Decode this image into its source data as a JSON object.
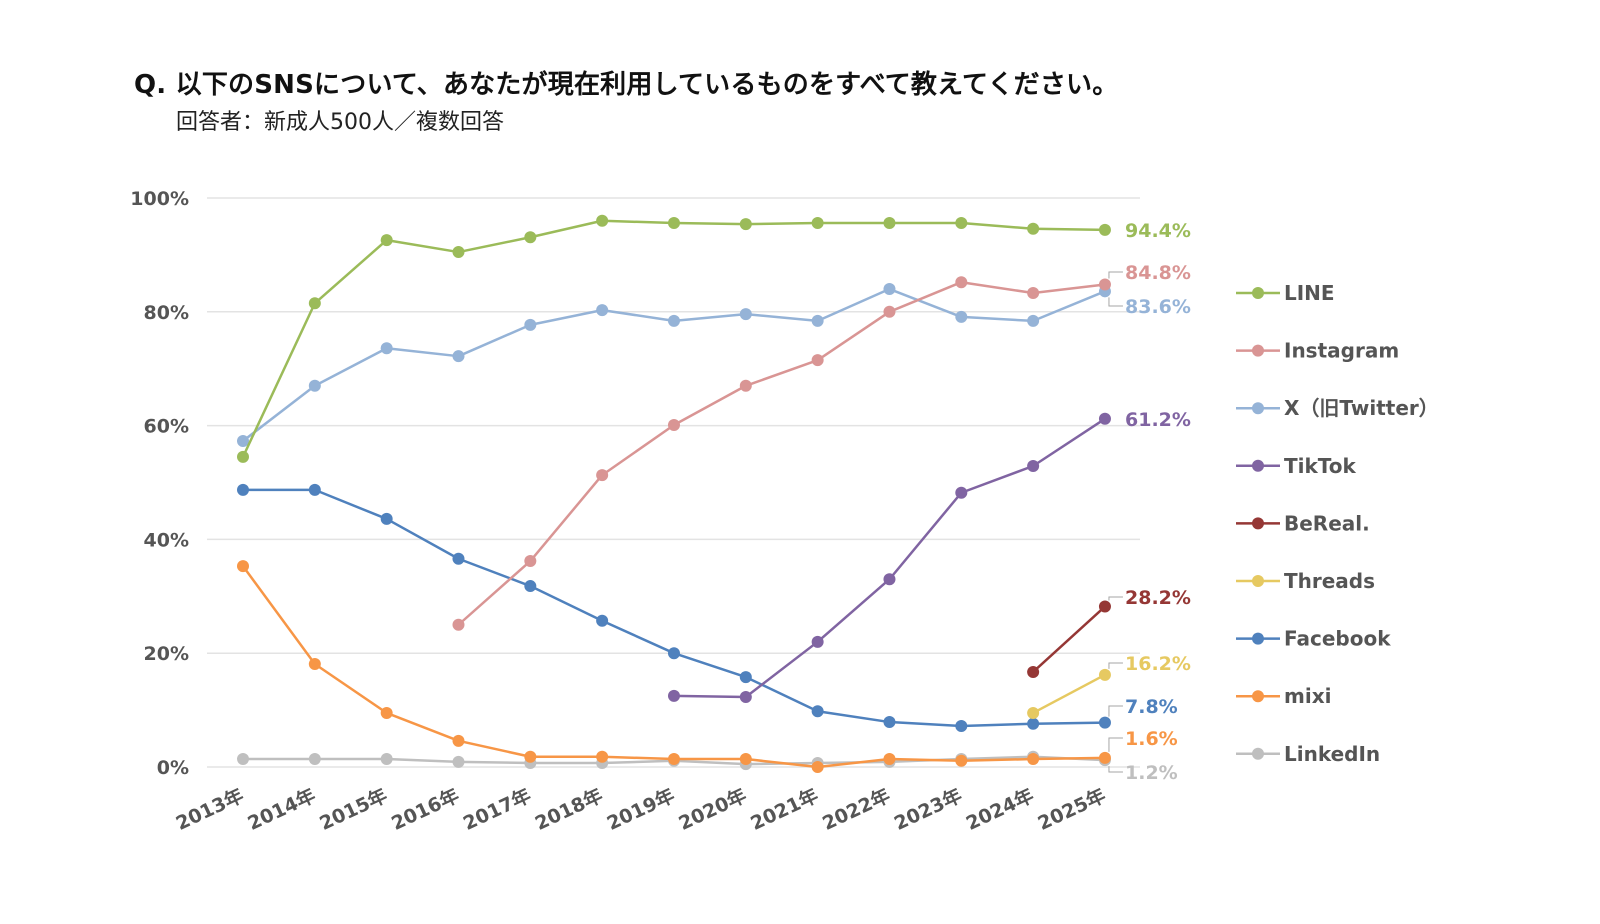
{
  "chart_data": {
    "type": "line",
    "title": "Q. 以下のSNSについて、あなたが現在利用しているものをすべて教えてください。",
    "subtitle": "回答者：新成人500人／複数回答",
    "xlabel": "",
    "ylabel": "",
    "ylim": [
      0,
      100
    ],
    "yticks": [
      0,
      20,
      40,
      60,
      80,
      100
    ],
    "ytick_labels": [
      "0%",
      "20%",
      "40%",
      "60%",
      "80%",
      "100%"
    ],
    "grid": true,
    "legend_position": "right",
    "categories": [
      "2013年",
      "2014年",
      "2015年",
      "2016年",
      "2017年",
      "2018年",
      "2019年",
      "2020年",
      "2021年",
      "2022年",
      "2023年",
      "2024年",
      "2025年"
    ],
    "series": [
      {
        "name": "LINE",
        "color": "#9BBB59",
        "end_label": "94.4%",
        "values": [
          54.5,
          81.5,
          92.6,
          90.5,
          93.1,
          96.0,
          95.6,
          95.4,
          95.6,
          95.6,
          95.6,
          94.6,
          94.4
        ]
      },
      {
        "name": "Instagram",
        "color": "#D99594",
        "end_label": "84.8%",
        "values": [
          null,
          null,
          null,
          25.0,
          36.2,
          51.3,
          60.1,
          67.0,
          71.5,
          80.0,
          85.2,
          83.3,
          84.8
        ]
      },
      {
        "name": "X（旧Twitter）",
        "color": "#95B3D7",
        "end_label": "83.6%",
        "values": [
          57.3,
          67.0,
          73.6,
          72.2,
          77.7,
          80.3,
          78.4,
          79.6,
          78.4,
          84.0,
          79.1,
          78.4,
          83.6
        ]
      },
      {
        "name": "TikTok",
        "color": "#8064A2",
        "end_label": "61.2%",
        "values": [
          null,
          null,
          null,
          null,
          null,
          null,
          12.5,
          12.3,
          22.0,
          33.0,
          48.2,
          52.9,
          61.2
        ]
      },
      {
        "name": "BeReal.",
        "color": "#953735",
        "end_label": "28.2%",
        "values": [
          null,
          null,
          null,
          null,
          null,
          null,
          null,
          null,
          null,
          null,
          null,
          16.7,
          28.2
        ]
      },
      {
        "name": "Threads",
        "color": "#E6C961",
        "end_label": "16.2%",
        "values": [
          null,
          null,
          null,
          null,
          null,
          null,
          null,
          null,
          null,
          null,
          null,
          9.5,
          16.2
        ]
      },
      {
        "name": "Facebook",
        "color": "#4F81BD",
        "end_label": "7.8%",
        "values": [
          48.7,
          48.7,
          43.6,
          36.6,
          31.8,
          25.7,
          20.0,
          15.8,
          9.8,
          7.9,
          7.2,
          7.6,
          7.8
        ]
      },
      {
        "name": "mixi",
        "color": "#F79646",
        "end_label": "1.6%",
        "values": [
          35.3,
          18.1,
          9.5,
          4.6,
          1.8,
          1.8,
          1.4,
          1.4,
          0.0,
          1.4,
          1.1,
          1.4,
          1.6
        ]
      },
      {
        "name": "LinkedIn",
        "color": "#BFBFBF",
        "end_label": "1.2%",
        "values": [
          1.4,
          1.4,
          1.4,
          0.9,
          0.7,
          0.7,
          1.1,
          0.5,
          0.7,
          0.9,
          1.4,
          1.8,
          1.2
        ]
      }
    ]
  }
}
